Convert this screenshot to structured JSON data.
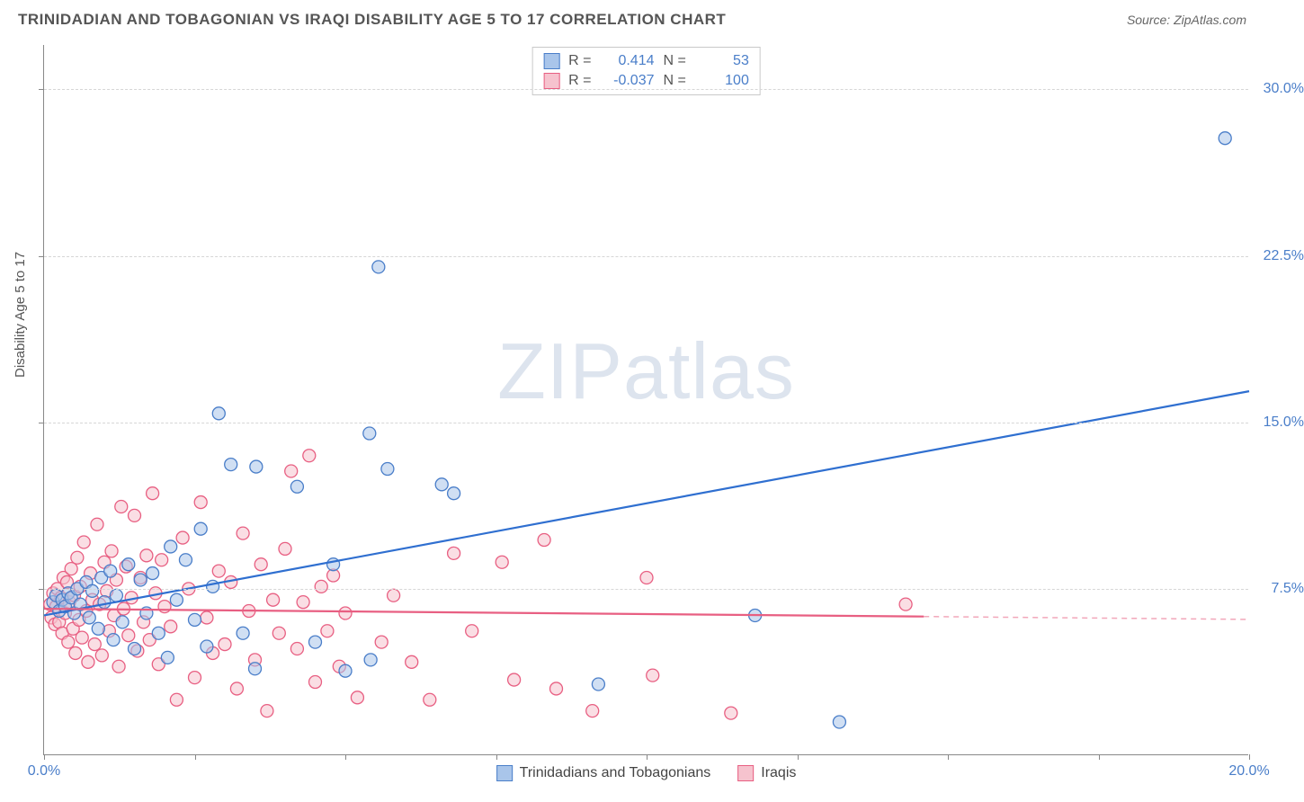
{
  "header": {
    "title": "TRINIDADIAN AND TOBAGONIAN VS IRAQI DISABILITY AGE 5 TO 17 CORRELATION CHART",
    "source_prefix": "Source: ",
    "source_name": "ZipAtlas.com"
  },
  "watermark": {
    "part1": "ZIP",
    "part2": "atlas"
  },
  "chart": {
    "type": "scatter",
    "ylabel": "Disability Age 5 to 17",
    "xlim": [
      0,
      20
    ],
    "ylim": [
      0,
      32
    ],
    "xticks": [
      0,
      2.5,
      5,
      7.5,
      10,
      12.5,
      15,
      17.5,
      20
    ],
    "xtick_labels": {
      "0": "0.0%",
      "20": "20.0%"
    },
    "yticks": [
      7.5,
      15,
      22.5,
      30
    ],
    "ytick_labels": {
      "7.5": "7.5%",
      "15": "15.0%",
      "22.5": "22.5%",
      "30": "30.0%"
    },
    "background_color": "#ffffff",
    "grid_color": "#d6d6d6",
    "marker_radius": 7,
    "marker_opacity": 0.55,
    "line_width": 2.2,
    "series": [
      {
        "name": "Trinidadians and Tobagonians",
        "color_fill": "#a9c5ea",
        "color_stroke": "#4a7ec9",
        "line_color": "#2f6fd0",
        "R": "0.414",
        "N": "53",
        "regression": {
          "x1": 0,
          "y1": 6.3,
          "x2": 20,
          "y2": 16.4
        },
        "points": [
          [
            0.15,
            6.9
          ],
          [
            0.2,
            7.2
          ],
          [
            0.25,
            6.5
          ],
          [
            0.3,
            7.0
          ],
          [
            0.35,
            6.7
          ],
          [
            0.4,
            7.3
          ],
          [
            0.45,
            7.1
          ],
          [
            0.5,
            6.4
          ],
          [
            0.55,
            7.5
          ],
          [
            0.6,
            6.8
          ],
          [
            0.7,
            7.8
          ],
          [
            0.75,
            6.2
          ],
          [
            0.8,
            7.4
          ],
          [
            0.9,
            5.7
          ],
          [
            0.95,
            8.0
          ],
          [
            1.0,
            6.9
          ],
          [
            1.1,
            8.3
          ],
          [
            1.15,
            5.2
          ],
          [
            1.2,
            7.2
          ],
          [
            1.3,
            6.0
          ],
          [
            1.4,
            8.6
          ],
          [
            1.5,
            4.8
          ],
          [
            1.6,
            7.9
          ],
          [
            1.7,
            6.4
          ],
          [
            1.8,
            8.2
          ],
          [
            1.9,
            5.5
          ],
          [
            2.05,
            4.4
          ],
          [
            2.1,
            9.4
          ],
          [
            2.2,
            7.0
          ],
          [
            2.35,
            8.8
          ],
          [
            2.5,
            6.1
          ],
          [
            2.6,
            10.2
          ],
          [
            2.7,
            4.9
          ],
          [
            2.8,
            7.6
          ],
          [
            2.9,
            15.4
          ],
          [
            3.1,
            13.1
          ],
          [
            3.3,
            5.5
          ],
          [
            3.5,
            3.9
          ],
          [
            3.52,
            13.0
          ],
          [
            4.2,
            12.1
          ],
          [
            4.5,
            5.1
          ],
          [
            4.8,
            8.6
          ],
          [
            5.0,
            3.8
          ],
          [
            5.4,
            14.5
          ],
          [
            5.42,
            4.3
          ],
          [
            5.55,
            22.0
          ],
          [
            5.7,
            12.9
          ],
          [
            6.6,
            12.2
          ],
          [
            6.8,
            11.8
          ],
          [
            9.2,
            3.2
          ],
          [
            11.8,
            6.3
          ],
          [
            13.2,
            1.5
          ],
          [
            19.6,
            27.8
          ]
        ]
      },
      {
        "name": "Iraqis",
        "color_fill": "#f6c3ce",
        "color_stroke": "#e85f82",
        "line_color": "#e85f82",
        "R": "-0.037",
        "N": "100",
        "regression": {
          "x1": 0,
          "y1": 6.6,
          "x2": 14.6,
          "y2": 6.25
        },
        "regression_dash": {
          "x1": 14.6,
          "y1": 6.25,
          "x2": 20,
          "y2": 6.12
        },
        "points": [
          [
            0.1,
            6.8
          ],
          [
            0.12,
            6.2
          ],
          [
            0.15,
            7.3
          ],
          [
            0.18,
            5.9
          ],
          [
            0.2,
            6.7
          ],
          [
            0.22,
            7.5
          ],
          [
            0.25,
            6.0
          ],
          [
            0.28,
            7.1
          ],
          [
            0.3,
            5.5
          ],
          [
            0.32,
            8.0
          ],
          [
            0.35,
            6.4
          ],
          [
            0.38,
            7.8
          ],
          [
            0.4,
            5.1
          ],
          [
            0.42,
            6.9
          ],
          [
            0.45,
            8.4
          ],
          [
            0.48,
            5.7
          ],
          [
            0.5,
            7.2
          ],
          [
            0.52,
            4.6
          ],
          [
            0.55,
            8.9
          ],
          [
            0.58,
            6.1
          ],
          [
            0.6,
            7.6
          ],
          [
            0.63,
            5.3
          ],
          [
            0.66,
            9.6
          ],
          [
            0.7,
            6.5
          ],
          [
            0.73,
            4.2
          ],
          [
            0.77,
            8.2
          ],
          [
            0.8,
            7.0
          ],
          [
            0.84,
            5.0
          ],
          [
            0.88,
            10.4
          ],
          [
            0.92,
            6.8
          ],
          [
            0.96,
            4.5
          ],
          [
            1.0,
            8.7
          ],
          [
            1.04,
            7.4
          ],
          [
            1.08,
            5.6
          ],
          [
            1.12,
            9.2
          ],
          [
            1.16,
            6.3
          ],
          [
            1.2,
            7.9
          ],
          [
            1.24,
            4.0
          ],
          [
            1.28,
            11.2
          ],
          [
            1.32,
            6.6
          ],
          [
            1.36,
            8.5
          ],
          [
            1.4,
            5.4
          ],
          [
            1.45,
            7.1
          ],
          [
            1.5,
            10.8
          ],
          [
            1.55,
            4.7
          ],
          [
            1.6,
            8.0
          ],
          [
            1.65,
            6.0
          ],
          [
            1.7,
            9.0
          ],
          [
            1.75,
            5.2
          ],
          [
            1.8,
            11.8
          ],
          [
            1.85,
            7.3
          ],
          [
            1.9,
            4.1
          ],
          [
            1.95,
            8.8
          ],
          [
            2.0,
            6.7
          ],
          [
            2.1,
            5.8
          ],
          [
            2.2,
            2.5
          ],
          [
            2.3,
            9.8
          ],
          [
            2.4,
            7.5
          ],
          [
            2.5,
            3.5
          ],
          [
            2.6,
            11.4
          ],
          [
            2.7,
            6.2
          ],
          [
            2.8,
            4.6
          ],
          [
            2.9,
            8.3
          ],
          [
            3.0,
            5.0
          ],
          [
            3.1,
            7.8
          ],
          [
            3.2,
            3.0
          ],
          [
            3.3,
            10.0
          ],
          [
            3.4,
            6.5
          ],
          [
            3.5,
            4.3
          ],
          [
            3.6,
            8.6
          ],
          [
            3.7,
            2.0
          ],
          [
            3.8,
            7.0
          ],
          [
            3.9,
            5.5
          ],
          [
            4.0,
            9.3
          ],
          [
            4.1,
            12.8
          ],
          [
            4.2,
            4.8
          ],
          [
            4.3,
            6.9
          ],
          [
            4.4,
            13.5
          ],
          [
            4.5,
            3.3
          ],
          [
            4.6,
            7.6
          ],
          [
            4.7,
            5.6
          ],
          [
            4.8,
            8.1
          ],
          [
            4.9,
            4.0
          ],
          [
            5.0,
            6.4
          ],
          [
            5.2,
            2.6
          ],
          [
            5.6,
            5.1
          ],
          [
            5.8,
            7.2
          ],
          [
            6.1,
            4.2
          ],
          [
            6.4,
            2.5
          ],
          [
            6.8,
            9.1
          ],
          [
            7.1,
            5.6
          ],
          [
            7.6,
            8.7
          ],
          [
            7.8,
            3.4
          ],
          [
            8.3,
            9.7
          ],
          [
            8.5,
            3.0
          ],
          [
            9.1,
            2.0
          ],
          [
            10.0,
            8.0
          ],
          [
            10.1,
            3.6
          ],
          [
            11.4,
            1.9
          ],
          [
            14.3,
            6.8
          ]
        ]
      }
    ]
  }
}
